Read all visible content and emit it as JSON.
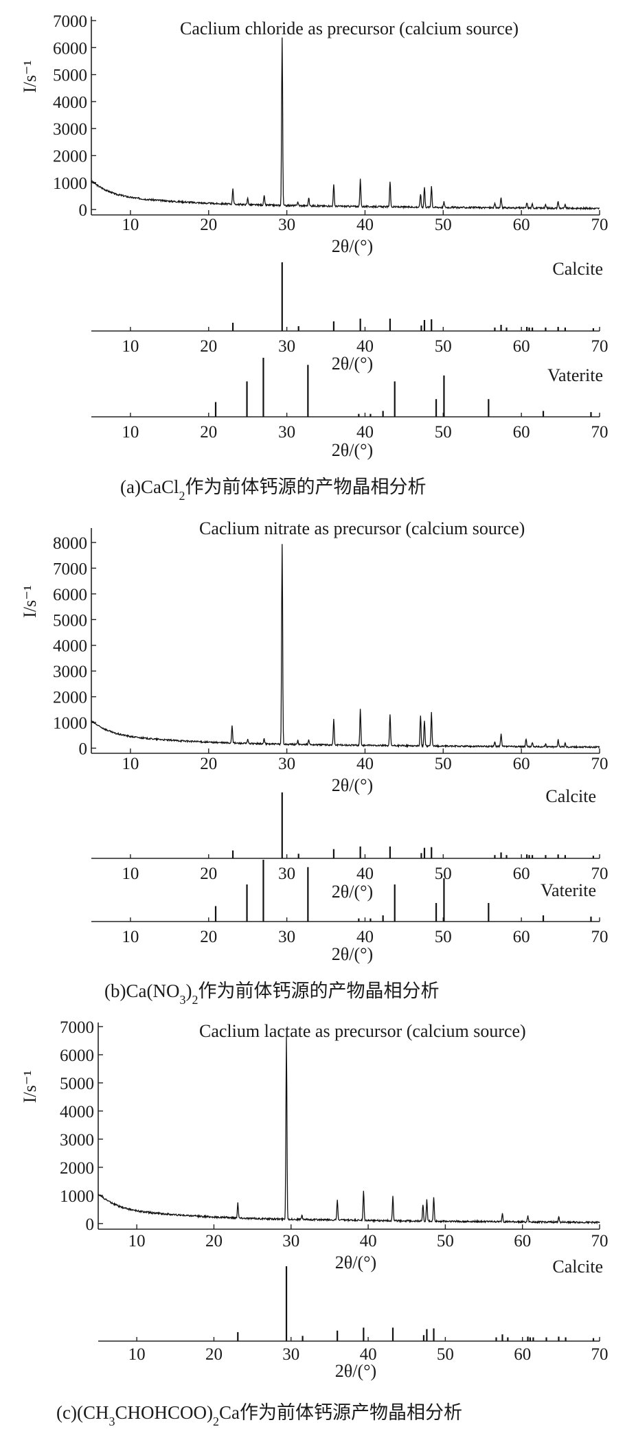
{
  "chart_data": [
    {
      "type": "line",
      "panel": "a",
      "title": "Caclium chloride as precursor (calcium source)",
      "xlabel": "2θ/(°)",
      "ylabel": "I/s⁻¹",
      "xlim": [
        5,
        70
      ],
      "ylim": [
        -200,
        7000
      ],
      "x_ticks": [
        10,
        20,
        30,
        40,
        50,
        60,
        70
      ],
      "y_ticks": [
        0,
        1000,
        2000,
        3000,
        4000,
        5000,
        6000,
        7000
      ],
      "series": [
        {
          "baseline": [
            [
              5,
              1050
            ],
            [
              6,
              850
            ],
            [
              7,
              700
            ],
            [
              8,
              580
            ],
            [
              10,
              450
            ],
            [
              12,
              380
            ],
            [
              15,
              310
            ],
            [
              20,
              230
            ],
            [
              25,
              180
            ],
            [
              30,
              150
            ],
            [
              40,
              110
            ],
            [
              50,
              80
            ],
            [
              60,
              60
            ],
            [
              70,
              40
            ]
          ],
          "peaks": [
            [
              23.1,
              600
            ],
            [
              25.0,
              250
            ],
            [
              27.1,
              350
            ],
            [
              29.4,
              6200
            ],
            [
              31.4,
              150
            ],
            [
              32.8,
              300
            ],
            [
              36.0,
              800
            ],
            [
              39.4,
              1000
            ],
            [
              43.2,
              950
            ],
            [
              47.1,
              500
            ],
            [
              47.6,
              750
            ],
            [
              48.5,
              800
            ],
            [
              50.1,
              200
            ],
            [
              56.6,
              150
            ],
            [
              57.4,
              380
            ],
            [
              60.7,
              200
            ],
            [
              61.4,
              150
            ],
            [
              63.1,
              120
            ],
            [
              64.7,
              250
            ],
            [
              65.6,
              120
            ]
          ]
        }
      ]
    },
    {
      "type": "bar",
      "panel": "a",
      "ref_name": "Calcite",
      "xlabel": "2θ/(°)",
      "xlim": [
        5,
        70
      ],
      "x_ticks": [
        10,
        20,
        30,
        40,
        50,
        60,
        70
      ],
      "sticks": [
        [
          23.1,
          12
        ],
        [
          29.4,
          100
        ],
        [
          31.5,
          7
        ],
        [
          36.0,
          14
        ],
        [
          39.4,
          18
        ],
        [
          43.2,
          18
        ],
        [
          47.2,
          8
        ],
        [
          47.6,
          16
        ],
        [
          48.5,
          17
        ],
        [
          56.6,
          5
        ],
        [
          57.4,
          9
        ],
        [
          58.1,
          5
        ],
        [
          60.7,
          6
        ],
        [
          61.0,
          5
        ],
        [
          61.4,
          5
        ],
        [
          63.1,
          5
        ],
        [
          64.7,
          6
        ],
        [
          65.6,
          5
        ],
        [
          69.2,
          4
        ]
      ]
    },
    {
      "type": "bar",
      "panel": "a",
      "ref_name": "Vaterite",
      "xlabel": "2θ/(°)",
      "xlim": [
        5,
        70
      ],
      "x_ticks": [
        10,
        20,
        30,
        40,
        50,
        60,
        70
      ],
      "sticks": [
        [
          20.9,
          25
        ],
        [
          24.9,
          60
        ],
        [
          27.0,
          100
        ],
        [
          32.7,
          88
        ],
        [
          39.2,
          5
        ],
        [
          40.7,
          5
        ],
        [
          42.3,
          10
        ],
        [
          43.8,
          60
        ],
        [
          49.1,
          30
        ],
        [
          50.1,
          70
        ],
        [
          55.8,
          30
        ],
        [
          62.8,
          10
        ],
        [
          68.9,
          8
        ]
      ]
    },
    {
      "type": "line",
      "panel": "b",
      "title": "Caclium nitrate as precursor (calcium source)",
      "xlabel": "2θ/(°)",
      "ylabel": "I/s⁻¹",
      "xlim": [
        5,
        70
      ],
      "ylim": [
        -200,
        8400
      ],
      "x_ticks": [
        10,
        20,
        30,
        40,
        50,
        60,
        70
      ],
      "y_ticks": [
        0,
        1000,
        2000,
        3000,
        4000,
        5000,
        6000,
        7000,
        8000
      ],
      "series": [
        {
          "baseline": [
            [
              5,
              1050
            ],
            [
              6,
              850
            ],
            [
              7,
              700
            ],
            [
              8,
              580
            ],
            [
              10,
              450
            ],
            [
              12,
              380
            ],
            [
              15,
              310
            ],
            [
              20,
              230
            ],
            [
              25,
              180
            ],
            [
              30,
              150
            ],
            [
              40,
              110
            ],
            [
              50,
              80
            ],
            [
              60,
              60
            ],
            [
              70,
              40
            ]
          ],
          "peaks": [
            [
              23.0,
              700
            ],
            [
              25.0,
              150
            ],
            [
              27.1,
              200
            ],
            [
              29.4,
              7800
            ],
            [
              31.4,
              150
            ],
            [
              32.8,
              200
            ],
            [
              36.0,
              1000
            ],
            [
              39.4,
              1400
            ],
            [
              43.2,
              1200
            ],
            [
              47.1,
              1200
            ],
            [
              47.6,
              1000
            ],
            [
              48.5,
              1300
            ],
            [
              56.6,
              200
            ],
            [
              57.4,
              500
            ],
            [
              60.6,
              300
            ],
            [
              61.4,
              150
            ],
            [
              63.1,
              120
            ],
            [
              64.7,
              300
            ],
            [
              65.6,
              150
            ]
          ]
        }
      ]
    },
    {
      "type": "bar",
      "panel": "b",
      "ref_name": "Calcite",
      "xlabel": "2θ/(°)",
      "xlim": [
        5,
        70
      ],
      "x_ticks": [
        10,
        20,
        30,
        40,
        50,
        60,
        70
      ],
      "sticks": [
        [
          23.1,
          12
        ],
        [
          29.4,
          100
        ],
        [
          31.5,
          7
        ],
        [
          36.0,
          14
        ],
        [
          39.4,
          18
        ],
        [
          43.2,
          18
        ],
        [
          47.2,
          8
        ],
        [
          47.6,
          16
        ],
        [
          48.5,
          17
        ],
        [
          56.6,
          5
        ],
        [
          57.4,
          9
        ],
        [
          58.1,
          5
        ],
        [
          60.7,
          6
        ],
        [
          61.0,
          5
        ],
        [
          61.4,
          5
        ],
        [
          63.1,
          5
        ],
        [
          64.7,
          6
        ],
        [
          65.6,
          5
        ],
        [
          69.2,
          4
        ]
      ]
    },
    {
      "type": "bar",
      "panel": "b",
      "ref_name": "Vaterite",
      "xlabel": "2θ/(°)",
      "xlim": [
        5,
        70
      ],
      "x_ticks": [
        10,
        20,
        30,
        40,
        50,
        60,
        70
      ],
      "sticks": [
        [
          20.9,
          25
        ],
        [
          24.9,
          60
        ],
        [
          27.0,
          100
        ],
        [
          32.7,
          88
        ],
        [
          39.2,
          5
        ],
        [
          40.7,
          5
        ],
        [
          42.3,
          10
        ],
        [
          43.8,
          60
        ],
        [
          49.1,
          30
        ],
        [
          50.1,
          70
        ],
        [
          55.8,
          30
        ],
        [
          62.8,
          10
        ],
        [
          68.9,
          8
        ]
      ]
    },
    {
      "type": "line",
      "panel": "c",
      "title": "Caclium lactate as precursor (calcium source)",
      "xlabel": "2θ/(°)",
      "ylabel": "I/s⁻¹",
      "xlim": [
        5,
        70
      ],
      "ylim": [
        -200,
        7000
      ],
      "x_ticks": [
        10,
        20,
        30,
        40,
        50,
        60,
        70
      ],
      "y_ticks": [
        0,
        1000,
        2000,
        3000,
        4000,
        5000,
        6000,
        7000
      ],
      "series": [
        {
          "baseline": [
            [
              5,
              1050
            ],
            [
              6,
              850
            ],
            [
              7,
              700
            ],
            [
              8,
              580
            ],
            [
              10,
              450
            ],
            [
              12,
              380
            ],
            [
              15,
              310
            ],
            [
              20,
              230
            ],
            [
              25,
              180
            ],
            [
              30,
              150
            ],
            [
              40,
              110
            ],
            [
              50,
              80
            ],
            [
              60,
              60
            ],
            [
              70,
              40
            ]
          ],
          "peaks": [
            [
              23.1,
              550
            ],
            [
              29.4,
              6500
            ],
            [
              31.4,
              150
            ],
            [
              36.0,
              700
            ],
            [
              39.4,
              1050
            ],
            [
              43.2,
              900
            ],
            [
              47.1,
              600
            ],
            [
              47.6,
              750
            ],
            [
              48.5,
              850
            ],
            [
              57.4,
              300
            ],
            [
              60.7,
              200
            ],
            [
              64.7,
              200
            ]
          ]
        }
      ]
    },
    {
      "type": "bar",
      "panel": "c",
      "ref_name": "Calcite",
      "xlabel": "2θ/(°)",
      "xlim": [
        5,
        70
      ],
      "x_ticks": [
        10,
        20,
        30,
        40,
        50,
        60,
        70
      ],
      "sticks": [
        [
          23.1,
          12
        ],
        [
          29.4,
          100
        ],
        [
          31.5,
          7
        ],
        [
          36.0,
          14
        ],
        [
          39.4,
          18
        ],
        [
          43.2,
          18
        ],
        [
          47.2,
          8
        ],
        [
          47.6,
          16
        ],
        [
          48.5,
          17
        ],
        [
          56.6,
          5
        ],
        [
          57.4,
          9
        ],
        [
          58.1,
          5
        ],
        [
          60.7,
          6
        ],
        [
          61.0,
          5
        ],
        [
          61.4,
          5
        ],
        [
          63.1,
          5
        ],
        [
          64.7,
          6
        ],
        [
          65.6,
          5
        ],
        [
          69.2,
          4
        ]
      ]
    }
  ],
  "captions": {
    "a": {
      "prefix": "(a)CaCl",
      "sub": "2",
      "suffix": "作为前体钙源的产物晶相分析"
    },
    "b": {
      "prefix": "(b)Ca(NO",
      "sub": "3",
      "mid": ")",
      "sub2": "2",
      "suffix": "作为前体钙源的产物晶相分析"
    },
    "c": {
      "prefix": "(c)(CH",
      "sub": "3",
      "mid": "CHOHCOO)",
      "sub2": "2",
      "suffix": "Ca作为前体钙源产物晶相分析"
    }
  }
}
